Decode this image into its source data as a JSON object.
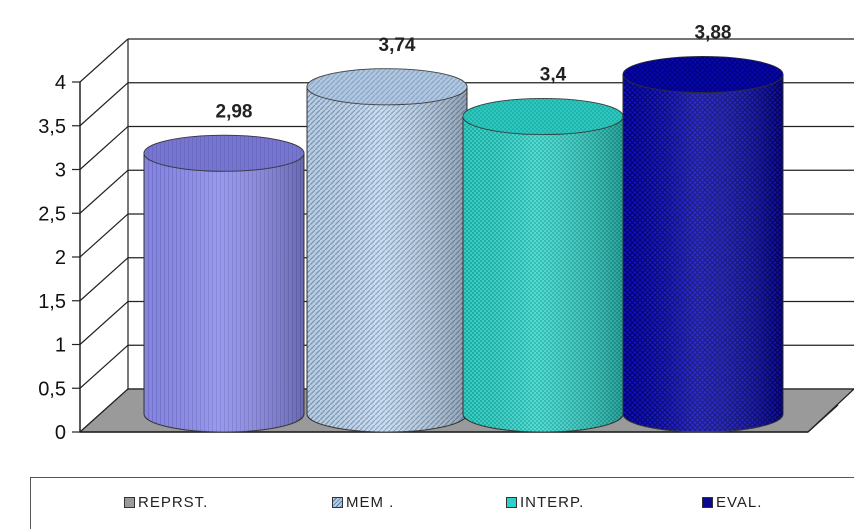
{
  "chart_data": {
    "type": "bar",
    "style": "3d-cylinder",
    "categories": [
      "REPRST.",
      "MEM .",
      "INTERP.",
      "EVAL."
    ],
    "values": [
      2.98,
      3.74,
      3.4,
      3.88
    ],
    "data_labels": [
      "2,98",
      "3,74",
      "3,4",
      "3,88"
    ],
    "y_ticks": [
      "0",
      "0,5",
      "1",
      "1,5",
      "2",
      "2,5",
      "3",
      "3,5",
      "4"
    ],
    "ylim": [
      0,
      4
    ],
    "grid": true,
    "legend_position": "bottom",
    "colors": [
      "#8a8ae6",
      "#b4cce6",
      "#2fd0c8",
      "#0a0ab0"
    ]
  },
  "legend": {
    "items": [
      "REPRST.",
      "MEM .",
      "INTERP.",
      "EVAL."
    ]
  }
}
